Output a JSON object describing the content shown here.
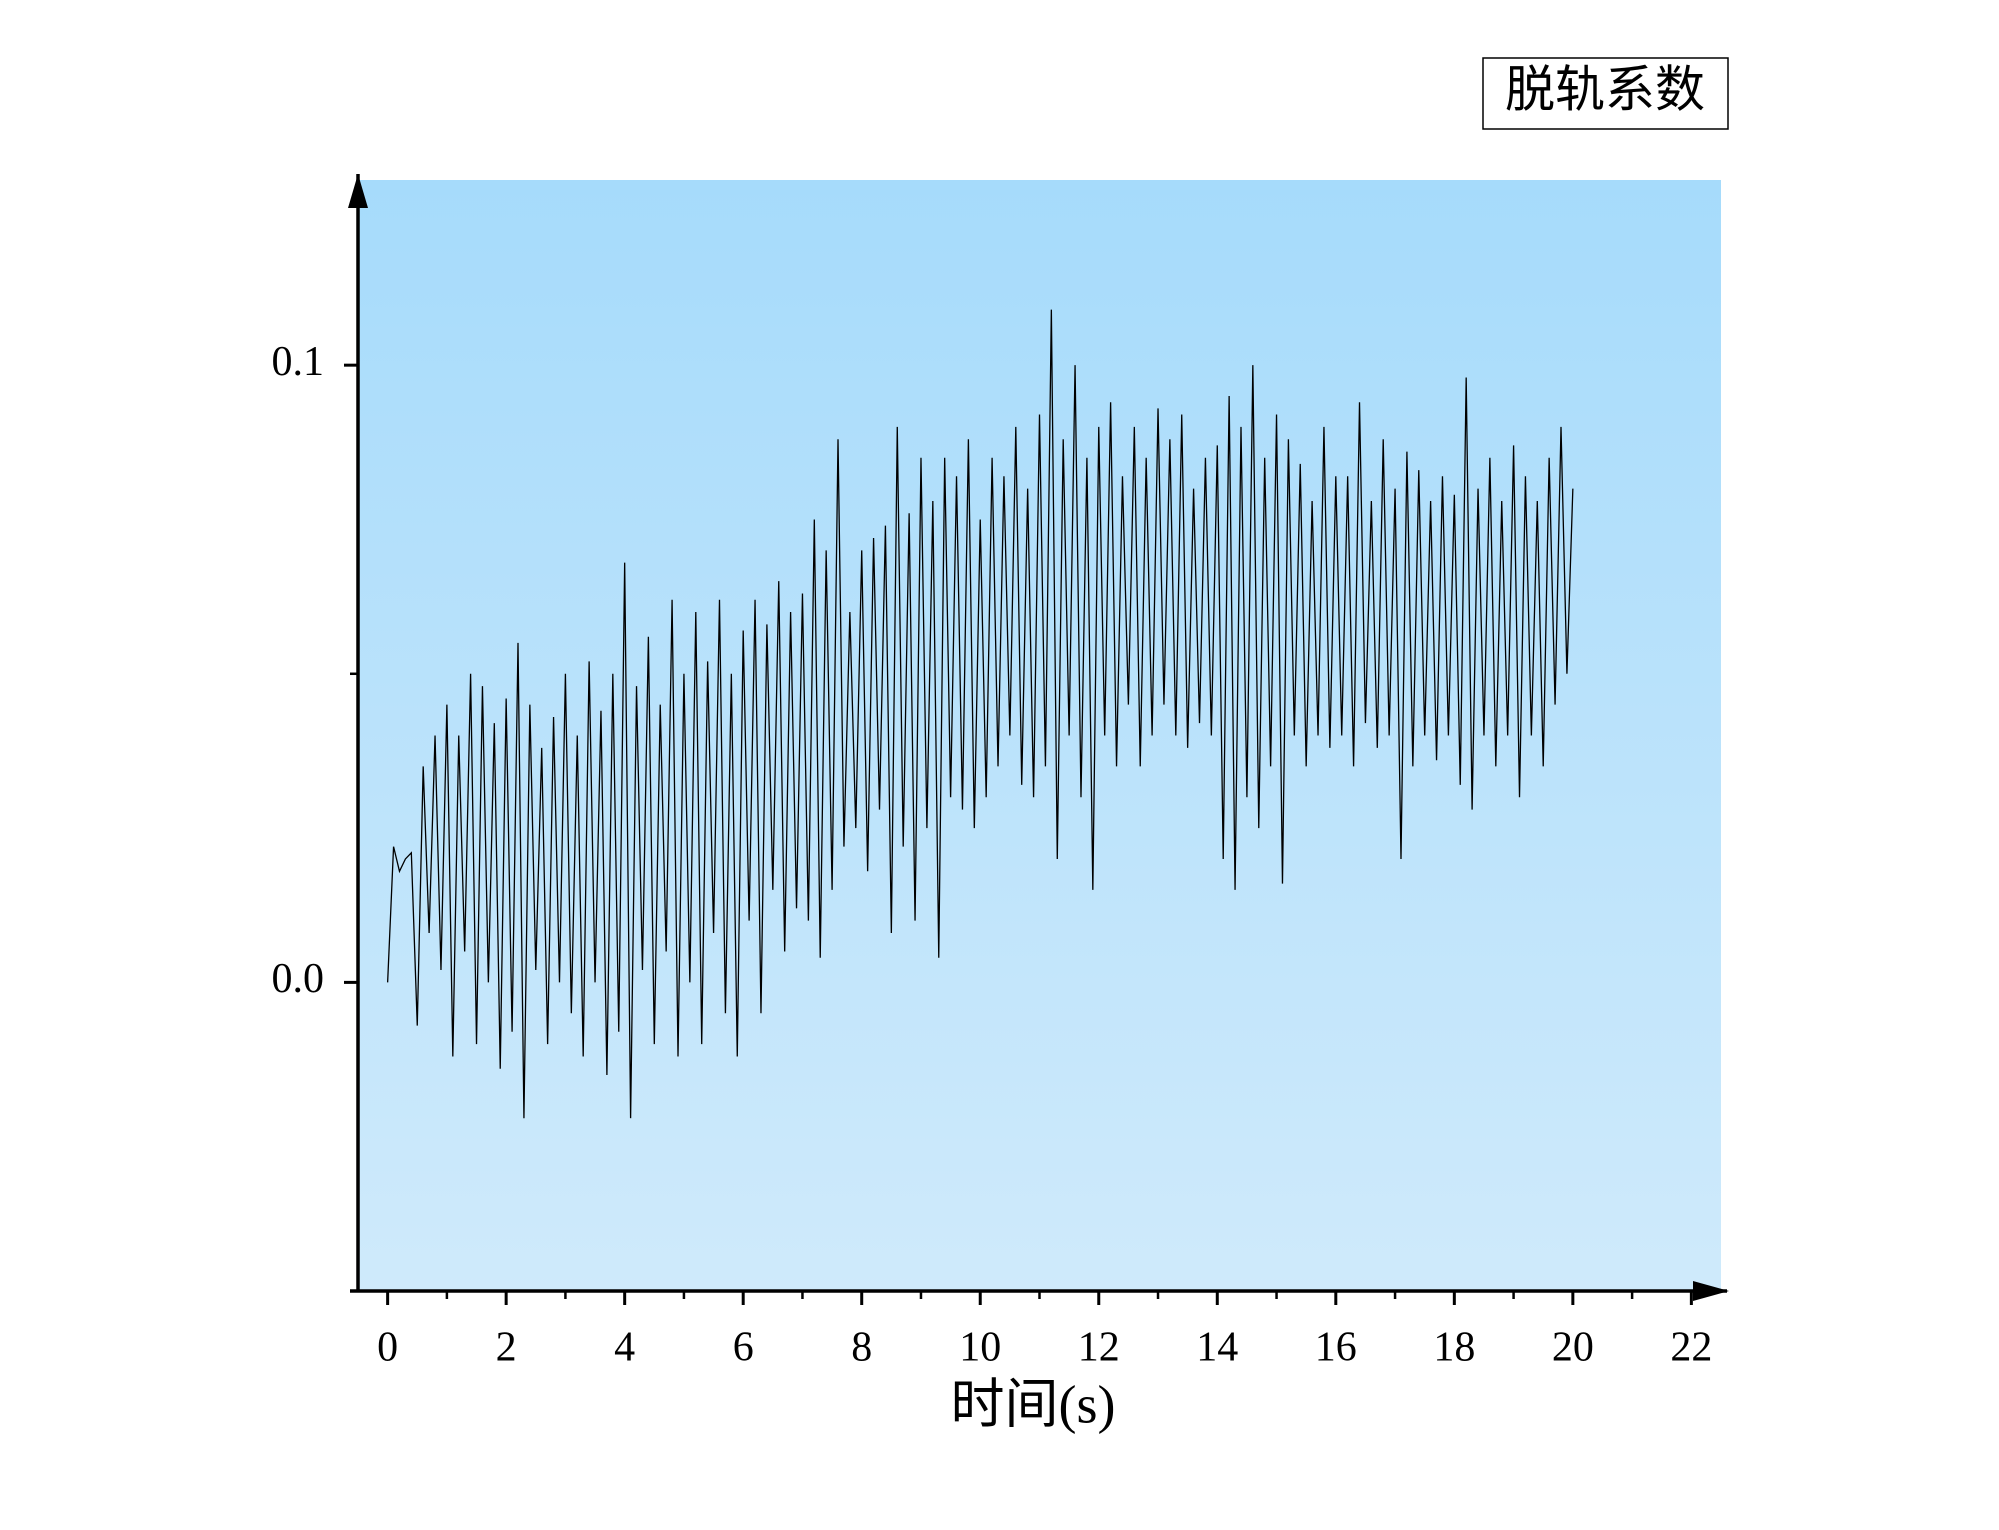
{
  "chart_data": {
    "type": "line",
    "title": "脱轨系数",
    "x_label": "时间(s)",
    "color": "#000000",
    "xlim": [
      -0.5,
      22.5
    ],
    "ylim": [
      -0.05,
      0.13
    ],
    "xticks": [
      0,
      2,
      4,
      6,
      8,
      10,
      12,
      14,
      16,
      18,
      20,
      22
    ],
    "yticks": [
      {
        "value": 0,
        "label": "0.0"
      },
      0.1
    ],
    "x": [
      0,
      0.1,
      0.2,
      0.3,
      0.4,
      0.5,
      0.6,
      0.7,
      0.8,
      0.9,
      1,
      1.1,
      1.2,
      1.3,
      1.4,
      1.5,
      1.6,
      1.7,
      1.8,
      1.9,
      2,
      2.1,
      2.2,
      2.3,
      2.4,
      2.5,
      2.6,
      2.7,
      2.8,
      2.9,
      3,
      3.1,
      3.2,
      3.3,
      3.4,
      3.5,
      3.6,
      3.7,
      3.8,
      3.9,
      4,
      4.1,
      4.2,
      4.3,
      4.4,
      4.5,
      4.6,
      4.7,
      4.8,
      4.9,
      5,
      5.1,
      5.2,
      5.3,
      5.4,
      5.5,
      5.6,
      5.7,
      5.8,
      5.9,
      6,
      6.1,
      6.2,
      6.3,
      6.4,
      6.5,
      6.6,
      6.7,
      6.8,
      6.9,
      7,
      7.1,
      7.2,
      7.3,
      7.4,
      7.5,
      7.6,
      7.7,
      7.8,
      7.9,
      8,
      8.1,
      8.2,
      8.3,
      8.4,
      8.5,
      8.6,
      8.7,
      8.8,
      8.9,
      9,
      9.1,
      9.2,
      9.3,
      9.4,
      9.5,
      9.6,
      9.7,
      9.8,
      9.9,
      10,
      10.1,
      10.2,
      10.3,
      10.4,
      10.5,
      10.6,
      10.7,
      10.8,
      10.9,
      11,
      11.1,
      11.2,
      11.3,
      11.4,
      11.5,
      11.6,
      11.7,
      11.8,
      11.9,
      12,
      12.1,
      12.2,
      12.3,
      12.4,
      12.5,
      12.6,
      12.7,
      12.8,
      12.9,
      13,
      13.1,
      13.2,
      13.3,
      13.4,
      13.5,
      13.6,
      13.7,
      13.8,
      13.9,
      14,
      14.1,
      14.2,
      14.3,
      14.4,
      14.5,
      14.6,
      14.7,
      14.8,
      14.9,
      15,
      15.1,
      15.2,
      15.3,
      15.4,
      15.5,
      15.6,
      15.7,
      15.8,
      15.9,
      16,
      16.1,
      16.2,
      16.3,
      16.4,
      16.5,
      16.6,
      16.7,
      16.8,
      16.9,
      17,
      17.1,
      17.2,
      17.3,
      17.4,
      17.5,
      17.6,
      17.7,
      17.8,
      17.9,
      18,
      18.1,
      18.2,
      18.3,
      18.4,
      18.5,
      18.6,
      18.7,
      18.8,
      18.9,
      19,
      19.1,
      19.2,
      19.3,
      19.4,
      19.5,
      19.6,
      19.7,
      19.8,
      19.9,
      20
    ],
    "values": [
      0,
      0.022,
      0.018,
      0.02,
      0.021,
      -0.007,
      0.035,
      0.008,
      0.04,
      0.002,
      0.045,
      -0.012,
      0.04,
      0.005,
      0.05,
      -0.01,
      0.048,
      0,
      0.042,
      -0.014,
      0.046,
      -0.008,
      0.055,
      -0.022,
      0.045,
      0.002,
      0.038,
      -0.01,
      0.043,
      0,
      0.05,
      -0.005,
      0.04,
      -0.012,
      0.052,
      0,
      0.044,
      -0.015,
      0.05,
      -0.008,
      0.068,
      -0.022,
      0.048,
      0.002,
      0.056,
      -0.01,
      0.045,
      0.005,
      0.062,
      -0.012,
      0.05,
      0,
      0.06,
      -0.01,
      0.052,
      0.008,
      0.062,
      -0.005,
      0.05,
      -0.012,
      0.057,
      0.01,
      0.062,
      -0.005,
      0.058,
      0.015,
      0.065,
      0.005,
      0.06,
      0.012,
      0.063,
      0.01,
      0.075,
      0.004,
      0.07,
      0.015,
      0.088,
      0.022,
      0.06,
      0.025,
      0.07,
      0.018,
      0.072,
      0.028,
      0.074,
      0.008,
      0.09,
      0.022,
      0.076,
      0.01,
      0.085,
      0.025,
      0.078,
      0.004,
      0.085,
      0.03,
      0.082,
      0.028,
      0.088,
      0.025,
      0.075,
      0.03,
      0.085,
      0.035,
      0.082,
      0.04,
      0.09,
      0.032,
      0.08,
      0.03,
      0.092,
      0.035,
      0.109,
      0.02,
      0.088,
      0.04,
      0.1,
      0.03,
      0.085,
      0.015,
      0.09,
      0.04,
      0.094,
      0.035,
      0.082,
      0.045,
      0.09,
      0.035,
      0.085,
      0.04,
      0.093,
      0.045,
      0.088,
      0.04,
      0.092,
      0.038,
      0.08,
      0.042,
      0.085,
      0.04,
      0.087,
      0.02,
      0.095,
      0.015,
      0.09,
      0.03,
      0.1,
      0.025,
      0.085,
      0.035,
      0.092,
      0.016,
      0.088,
      0.04,
      0.084,
      0.035,
      0.078,
      0.04,
      0.09,
      0.038,
      0.082,
      0.04,
      0.082,
      0.035,
      0.094,
      0.042,
      0.078,
      0.038,
      0.088,
      0.04,
      0.08,
      0.02,
      0.086,
      0.035,
      0.083,
      0.04,
      0.078,
      0.036,
      0.082,
      0.04,
      0.079,
      0.032,
      0.098,
      0.028,
      0.08,
      0.04,
      0.085,
      0.035,
      0.078,
      0.04,
      0.087,
      0.03,
      0.082,
      0.04,
      0.078,
      0.035,
      0.085,
      0.045,
      0.09,
      0.05,
      0.08
    ]
  }
}
